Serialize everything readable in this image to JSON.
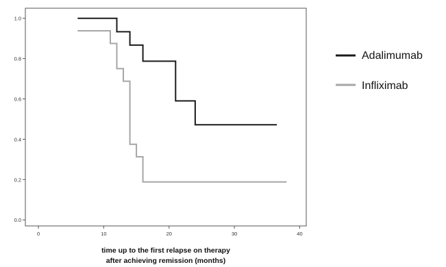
{
  "chart_data": {
    "type": "line",
    "step": true,
    "x_label_lines": [
      "time up to the first relapse on therapy",
      "after achieving remission (months)"
    ],
    "xlim": [
      -2,
      41
    ],
    "ylim": [
      -0.03,
      1.05
    ],
    "x_ticks": [
      0,
      10,
      20,
      30,
      40
    ],
    "y_ticks": [
      0.0,
      0.2,
      0.4,
      0.6,
      0.8,
      1.0
    ],
    "x_tick_labels": [
      "0",
      "10",
      "20",
      "30",
      "40"
    ],
    "y_tick_labels": [
      "0.0",
      "0.2",
      "0.4",
      "0.6",
      "0.8",
      "1.0"
    ],
    "legend_position": "right",
    "series": [
      {
        "name": "Adalimumab",
        "color": "#1a1a1a",
        "points": [
          [
            6,
            1.0
          ],
          [
            12,
            1.0
          ],
          [
            12,
            0.933
          ],
          [
            14,
            0.933
          ],
          [
            14,
            0.867
          ],
          [
            16,
            0.867
          ],
          [
            16,
            0.787
          ],
          [
            21,
            0.787
          ],
          [
            21,
            0.59
          ],
          [
            24,
            0.59
          ],
          [
            24,
            0.472
          ],
          [
            36.5,
            0.472
          ]
        ]
      },
      {
        "name": "Infliximab",
        "color": "#a6a6a6",
        "points": [
          [
            6,
            0.938
          ],
          [
            11,
            0.938
          ],
          [
            11,
            0.875
          ],
          [
            12,
            0.875
          ],
          [
            12,
            0.75
          ],
          [
            13,
            0.75
          ],
          [
            13,
            0.688
          ],
          [
            14,
            0.688
          ],
          [
            14,
            0.375
          ],
          [
            15,
            0.375
          ],
          [
            15,
            0.313
          ],
          [
            16,
            0.313
          ],
          [
            16,
            0.188
          ],
          [
            38,
            0.188
          ]
        ]
      }
    ]
  }
}
